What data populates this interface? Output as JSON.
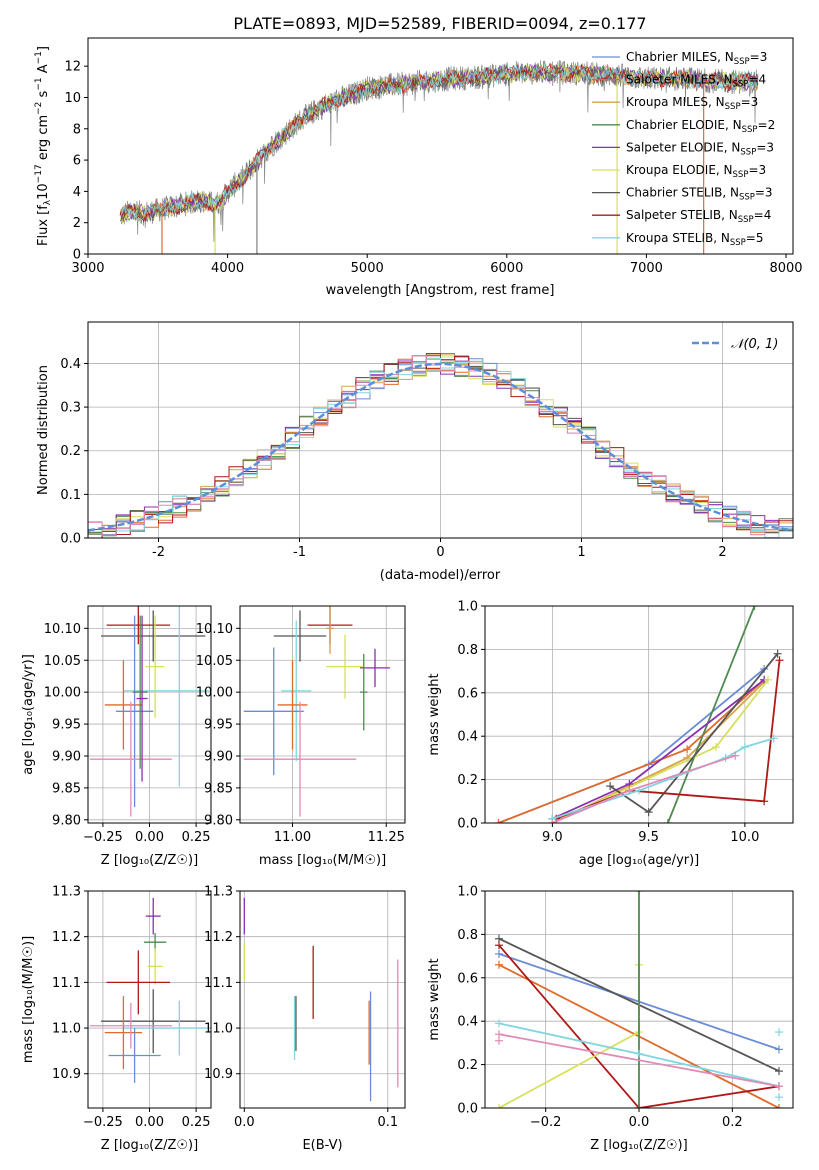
{
  "figure_title": "PLATE=0893, MJD=52589, FIBERID=0094, z=0.177",
  "colors": {
    "chabrier_miles": "#6a8cd6",
    "salpeter_miles": "#e06a2a",
    "kroupa_miles": "#d8a24a",
    "chabrier_elodie": "#4f8a4f",
    "salpeter_elodie": "#8a2fb0",
    "kroupa_elodie": "#d6e05a",
    "chabrier_stelib": "#555555",
    "salpeter_stelib": "#b01818",
    "kroupa_stelib": "#7fd6e0",
    "pink": "#e08ab6",
    "data_gray": "#808080",
    "normal_dash": "#5b8fd9",
    "grid": "#b0b0b0"
  },
  "chart_data": [
    {
      "id": "spectrum",
      "type": "line",
      "xlabel": "wavelength [Angstrom, rest frame]",
      "ylabel": "Flux [f_λ10^-17 erg cm^-2 s^-1 A^-1]",
      "xlim": [
        3000,
        8050
      ],
      "ylim": [
        0,
        13.8
      ],
      "xticks": [
        3000,
        4000,
        5000,
        6000,
        7000,
        8000
      ],
      "yticks": [
        0,
        2,
        4,
        6,
        8,
        10,
        12
      ],
      "grid": false,
      "legend_position": "top-right",
      "legend": [
        {
          "label": "Chabrier MILES, N",
          "sub": "SSP",
          "eq": "=3",
          "color_key": "chabrier_miles"
        },
        {
          "label": "Salpeter MILES, N",
          "sub": "SSP",
          "eq": "=4",
          "color_key": "salpeter_miles"
        },
        {
          "label": "Kroupa MILES, N",
          "sub": "SSP",
          "eq": "=3",
          "color_key": "kroupa_miles"
        },
        {
          "label": "Chabrier ELODIE, N",
          "sub": "SSP",
          "eq": "=2",
          "color_key": "chabrier_elodie"
        },
        {
          "label": "Salpeter ELODIE, N",
          "sub": "SSP",
          "eq": "=3",
          "color_key": "salpeter_elodie"
        },
        {
          "label": "Kroupa ELODIE, N",
          "sub": "SSP",
          "eq": "=3",
          "color_key": "kroupa_elodie"
        },
        {
          "label": "Chabrier STELIB, N",
          "sub": "SSP",
          "eq": "=3",
          "color_key": "chabrier_stelib"
        },
        {
          "label": "Salpeter STELIB, N",
          "sub": "SSP",
          "eq": "=4",
          "color_key": "salpeter_stelib"
        },
        {
          "label": "Kroupa STELIB, N",
          "sub": "SSP",
          "eq": "=5",
          "color_key": "kroupa_stelib"
        }
      ],
      "continuum": {
        "x": [
          3230,
          3300,
          3400,
          3500,
          3600,
          3700,
          3800,
          3900,
          3950,
          4000,
          4100,
          4200,
          4300,
          4400,
          4500,
          4600,
          4700,
          4800,
          4900,
          5000,
          5200,
          5400,
          5600,
          5800,
          6000,
          6200,
          6400,
          6600,
          6800,
          7000,
          7200,
          7400,
          7600,
          7800
        ],
        "y": [
          2.4,
          2.7,
          2.6,
          2.8,
          3.0,
          3.2,
          3.4,
          3.2,
          3.3,
          4.0,
          4.8,
          5.8,
          6.8,
          7.6,
          8.4,
          9.0,
          9.5,
          9.9,
          10.2,
          10.6,
          10.8,
          11.0,
          11.2,
          11.3,
          11.5,
          11.6,
          11.6,
          11.5,
          11.4,
          11.2,
          11.2,
          11.1,
          11.0,
          11.0
        ]
      },
      "drops": [
        {
          "x": 3530,
          "color_key": "salpeter_miles"
        },
        {
          "x": 3910,
          "color_key": "kroupa_elodie"
        },
        {
          "x": 4210,
          "color_key": "data_gray"
        },
        {
          "x": 6790,
          "color_key": "kroupa_elodie"
        },
        {
          "x": 7410,
          "color_key": "salpeter_miles"
        }
      ]
    },
    {
      "id": "residuals",
      "type": "line",
      "xlabel": "(data-model)/error",
      "ylabel": "Normed distribution",
      "xlim": [
        -2.5,
        2.5
      ],
      "ylim": [
        0,
        0.495
      ],
      "xticks": [
        -2,
        -1,
        0,
        1,
        2
      ],
      "yticks": [
        0.0,
        0.1,
        0.2,
        0.3,
        0.4
      ],
      "grid": true,
      "legend_position": "top-right",
      "legend": [
        {
          "label": "𝒩(0, 1)",
          "color_key": "normal_dash",
          "dashed": true
        }
      ],
      "bin_width": 0.1
    },
    {
      "id": "age_vs_Z",
      "type": "scatter",
      "xlabel": "Z [log₁₀(Z/Z☉)]",
      "ylabel": "age  [log₁₀(age/yr)]",
      "xlim": [
        -0.33,
        0.33
      ],
      "ylim": [
        9.795,
        10.135
      ],
      "xticks": [
        -0.25,
        0.0,
        0.25
      ],
      "xticklabels": [
        "−0.25",
        "0.00",
        "0.25"
      ],
      "yticks": [
        9.8,
        9.85,
        9.9,
        9.95,
        10.0,
        10.05,
        10.1
      ],
      "yticklabels": [
        "9.80",
        "9.85",
        "9.90",
        "9.95",
        "10.00",
        "10.05",
        "10.10"
      ],
      "grid": true,
      "points": [
        {
          "x": -0.06,
          "y": 10.105,
          "xerr": 0.17,
          "yerr": 0.03,
          "color_key": "salpeter_stelib"
        },
        {
          "x": 0.02,
          "y": 10.088,
          "xerr": 0.28,
          "yerr": 0.04,
          "color_key": "chabrier_stelib"
        },
        {
          "x": 0.03,
          "y": 10.04,
          "xerr": 0.05,
          "yerr": 0.08,
          "color_key": "kroupa_elodie"
        },
        {
          "x": 0.16,
          "y": 10.002,
          "xerr": 0.3,
          "yerr": 0.15,
          "color_key": "kroupa_stelib"
        },
        {
          "x": -0.14,
          "y": 9.98,
          "xerr": 0.1,
          "yerr": 0.07,
          "color_key": "salpeter_miles"
        },
        {
          "x": -0.08,
          "y": 9.97,
          "xerr": 0.1,
          "yerr": 0.15,
          "color_key": "chabrier_miles"
        },
        {
          "x": -0.1,
          "y": 9.895,
          "xerr": 0.22,
          "yerr": 0.09,
          "color_key": "pink"
        },
        {
          "x": -0.05,
          "y": 10.0,
          "xerr": 0.04,
          "yerr": 0.12,
          "color_key": "chabrier_elodie"
        },
        {
          "x": -0.04,
          "y": 9.99,
          "xerr": 0.03,
          "yerr": 0.13,
          "color_key": "salpeter_elodie"
        }
      ]
    },
    {
      "id": "age_vs_mass",
      "type": "scatter",
      "xlabel": "mass [log₁₀(M/M☉)]",
      "ylabel": "",
      "xlim": [
        10.86,
        11.3
      ],
      "ylim": [
        9.795,
        10.135
      ],
      "xticks": [
        11.0,
        11.25
      ],
      "xticklabels": [
        "11.00",
        "11.25"
      ],
      "yticks": [
        9.8,
        9.85,
        9.9,
        9.95,
        10.0,
        10.05,
        10.1
      ],
      "yticklabels": [
        "9.80",
        "9.85",
        "9.90",
        "9.95",
        "10.00",
        "10.05",
        "10.10"
      ],
      "grid": true,
      "points": [
        {
          "x": 11.1,
          "y": 10.105,
          "xerr": 0.06,
          "yerr": 0.03,
          "color_key": "salpeter_stelib"
        },
        {
          "x": 11.02,
          "y": 10.088,
          "xerr": 0.07,
          "yerr": 0.04,
          "color_key": "chabrier_stelib"
        },
        {
          "x": 11.14,
          "y": 10.04,
          "xerr": 0.05,
          "yerr": 0.05,
          "color_key": "kroupa_elodie"
        },
        {
          "x": 11.22,
          "y": 10.038,
          "xerr": 0.04,
          "yerr": 0.03,
          "color_key": "salpeter_elodie"
        },
        {
          "x": 11.01,
          "y": 10.002,
          "xerr": 0.04,
          "yerr": 0.11,
          "color_key": "kroupa_stelib"
        },
        {
          "x": 11.0,
          "y": 9.98,
          "xerr": 0.04,
          "yerr": 0.07,
          "color_key": "salpeter_miles"
        },
        {
          "x": 10.95,
          "y": 9.97,
          "xerr": 0.08,
          "yerr": 0.1,
          "color_key": "chabrier_miles"
        },
        {
          "x": 11.02,
          "y": 9.895,
          "xerr": 0.15,
          "yerr": 0.09,
          "color_key": "pink"
        },
        {
          "x": 11.19,
          "y": 10.0,
          "xerr": 0.01,
          "yerr": 0.06,
          "color_key": "chabrier_elodie"
        },
        {
          "x": 11.1,
          "y": 10.1,
          "xerr": 0.01,
          "yerr": 0.04,
          "color_key": "kroupa_miles"
        }
      ]
    },
    {
      "id": "weight_vs_age",
      "type": "line",
      "xlabel": "age  [log₁₀(age/yr)]",
      "ylabel": "mass weight",
      "xlim": [
        8.65,
        10.25
      ],
      "ylim": [
        0.0,
        1.0
      ],
      "xticks": [
        9.0,
        9.5,
        10.0
      ],
      "xticklabels": [
        "9.0",
        "9.5",
        "10.0"
      ],
      "yticks": [
        0.0,
        0.2,
        0.4,
        0.6,
        0.8,
        1.0
      ],
      "yticklabels": [
        "0.0",
        "0.2",
        "0.4",
        "0.6",
        "0.8",
        "1.0"
      ],
      "grid": true,
      "series": [
        {
          "color_key": "chabrier_miles",
          "x": [
            8.72,
            9.5,
            10.1
          ],
          "y": [
            0.0,
            0.27,
            0.71
          ]
        },
        {
          "color_key": "salpeter_miles",
          "x": [
            8.72,
            9.7,
            10.1
          ],
          "y": [
            0.0,
            0.34,
            0.66
          ]
        },
        {
          "color_key": "kroupa_miles",
          "x": [
            9.0,
            9.7,
            10.1
          ],
          "y": [
            0.0,
            0.3,
            0.65
          ]
        },
        {
          "color_key": "chabrier_elodie",
          "x": [
            9.6,
            10.05
          ],
          "y": [
            0.0,
            1.0
          ]
        },
        {
          "color_key": "salpeter_elodie",
          "x": [
            9.0,
            9.4,
            10.1
          ],
          "y": [
            0.02,
            0.18,
            0.66
          ]
        },
        {
          "color_key": "kroupa_elodie",
          "x": [
            9.0,
            9.85,
            10.12
          ],
          "y": [
            0.0,
            0.35,
            0.66
          ]
        },
        {
          "color_key": "chabrier_stelib",
          "x": [
            9.3,
            9.5,
            10.17
          ],
          "y": [
            0.17,
            0.05,
            0.78
          ]
        },
        {
          "color_key": "salpeter_stelib",
          "x": [
            9.02,
            9.4,
            10.1,
            10.18
          ],
          "y": [
            0.02,
            0.15,
            0.1,
            0.75
          ]
        },
        {
          "color_key": "kroupa_stelib",
          "x": [
            9.0,
            9.45,
            9.9,
            10.0,
            10.15
          ],
          "y": [
            0.02,
            0.15,
            0.3,
            0.35,
            0.39
          ]
        },
        {
          "color_key": "pink",
          "x": [
            9.0,
            9.4,
            9.95
          ],
          "y": [
            0.0,
            0.15,
            0.31
          ]
        }
      ]
    },
    {
      "id": "mass_vs_Z",
      "type": "scatter",
      "xlabel": "Z [log₁₀(Z/Z☉)]",
      "ylabel": "mass [log₁₀(M/M☉)]",
      "xlim": [
        -0.33,
        0.33
      ],
      "ylim": [
        10.825,
        11.3
      ],
      "xticks": [
        -0.25,
        0.0,
        0.25
      ],
      "xticklabels": [
        "−0.25",
        "0.00",
        "0.25"
      ],
      "yticks": [
        10.9,
        11.0,
        11.1,
        11.2,
        11.3
      ],
      "yticklabels": [
        "10.9",
        "11.0",
        "11.1",
        "11.2",
        "11.3"
      ],
      "grid": true,
      "points": [
        {
          "x": 0.02,
          "y": 11.245,
          "xerr": 0.04,
          "yerr": 0.04,
          "color_key": "salpeter_elodie"
        },
        {
          "x": 0.03,
          "y": 11.188,
          "xerr": 0.06,
          "yerr": 0.02,
          "color_key": "chabrier_elodie"
        },
        {
          "x": 0.03,
          "y": 11.135,
          "xerr": 0.04,
          "yerr": 0.04,
          "color_key": "kroupa_elodie"
        },
        {
          "x": -0.06,
          "y": 11.1,
          "xerr": 0.17,
          "yerr": 0.07,
          "color_key": "salpeter_stelib"
        },
        {
          "x": 0.02,
          "y": 11.015,
          "xerr": 0.28,
          "yerr": 0.07,
          "color_key": "chabrier_stelib"
        },
        {
          "x": 0.16,
          "y": 11.0,
          "xerr": 0.3,
          "yerr": 0.06,
          "color_key": "kroupa_stelib"
        },
        {
          "x": -0.14,
          "y": 10.99,
          "xerr": 0.1,
          "yerr": 0.08,
          "color_key": "salpeter_miles"
        },
        {
          "x": -0.1,
          "y": 11.005,
          "xerr": 0.22,
          "yerr": 0.05,
          "color_key": "pink"
        },
        {
          "x": -0.08,
          "y": 10.94,
          "xerr": 0.14,
          "yerr": 0.06,
          "color_key": "chabrier_miles"
        }
      ]
    },
    {
      "id": "mass_vs_ebv",
      "type": "scatter",
      "xlabel": "E(B-V)",
      "ylabel": "",
      "xlim": [
        -0.003,
        0.112
      ],
      "ylim": [
        10.825,
        11.3
      ],
      "xticks": [
        0.0,
        0.1
      ],
      "xticklabels": [
        "0.0",
        "0.1"
      ],
      "yticks": [
        10.9,
        11.0,
        11.1,
        11.2,
        11.3
      ],
      "yticklabels": [
        "10.9",
        "11.0",
        "11.1",
        "11.2",
        "11.3"
      ],
      "grid": true,
      "points": [
        {
          "x": 0.0,
          "y": 11.245,
          "xerr": 0,
          "yerr": 0.04,
          "color_key": "salpeter_elodie"
        },
        {
          "x": 0.0,
          "y": 11.145,
          "xerr": 0,
          "yerr": 0.04,
          "color_key": "kroupa_elodie"
        },
        {
          "x": 0.035,
          "y": 11.0,
          "xerr": 0,
          "yerr": 0.07,
          "color_key": "kroupa_stelib"
        },
        {
          "x": 0.036,
          "y": 11.01,
          "xerr": 0,
          "yerr": 0.06,
          "color_key": "chabrier_stelib"
        },
        {
          "x": 0.048,
          "y": 11.1,
          "xerr": 0,
          "yerr": 0.08,
          "color_key": "salpeter_stelib"
        },
        {
          "x": 0.087,
          "y": 10.99,
          "xerr": 0,
          "yerr": 0.07,
          "color_key": "salpeter_miles"
        },
        {
          "x": 0.088,
          "y": 10.96,
          "xerr": 0,
          "yerr": 0.12,
          "color_key": "chabrier_miles"
        },
        {
          "x": 0.107,
          "y": 11.01,
          "xerr": 0,
          "yerr": 0.14,
          "color_key": "pink"
        }
      ]
    },
    {
      "id": "weight_vs_Z",
      "type": "line",
      "xlabel": "Z [log₁₀(Z/Z☉)]",
      "ylabel": "mass weight",
      "xlim": [
        -0.33,
        0.33
      ],
      "ylim": [
        0.0,
        1.0
      ],
      "xticks": [
        -0.2,
        0.0,
        0.2
      ],
      "xticklabels": [
        "−0.2",
        "0.0",
        "0.2"
      ],
      "yticks": [
        0.0,
        0.2,
        0.4,
        0.6,
        0.8,
        1.0
      ],
      "yticklabels": [
        "0.0",
        "0.2",
        "0.4",
        "0.6",
        "0.8",
        "1.0"
      ],
      "grid": true,
      "series": [
        {
          "color_key": "chabrier_miles",
          "x": [
            -0.3,
            0.3
          ],
          "y": [
            0.71,
            0.27
          ]
        },
        {
          "color_key": "salpeter_miles",
          "x": [
            -0.3,
            0.3
          ],
          "y": [
            0.66,
            0.0
          ]
        },
        {
          "color_key": "chabrier_stelib",
          "x": [
            -0.3,
            0.3
          ],
          "y": [
            0.78,
            0.17
          ]
        },
        {
          "color_key": "salpeter_stelib",
          "x": [
            -0.3,
            0.0,
            0.3
          ],
          "y": [
            0.75,
            0.0,
            0.1
          ]
        },
        {
          "color_key": "kroupa_elodie",
          "x": [
            -0.3,
            0.0,
            0.0
          ],
          "y": [
            0.0,
            0.35,
            0.66
          ]
        },
        {
          "color_key": "chabrier_elodie",
          "x": [
            0.0,
            0.0
          ],
          "y": [
            0.0,
            1.0
          ]
        },
        {
          "color_key": "kroupa_stelib",
          "x": [
            -0.3,
            0.0,
            0.3
          ],
          "y": [
            0.39,
            0.25,
            0.1
          ]
        },
        {
          "color_key": "pink",
          "x": [
            -0.3,
            0.3
          ],
          "y": [
            0.34,
            0.1
          ]
        }
      ],
      "markers": [
        {
          "x": -0.3,
          "y": 0.31,
          "color_key": "pink"
        },
        {
          "x": 0.3,
          "y": 0.35,
          "color_key": "kroupa_stelib"
        },
        {
          "x": 0.3,
          "y": 0.05,
          "color_key": "kroupa_stelib"
        }
      ]
    }
  ]
}
